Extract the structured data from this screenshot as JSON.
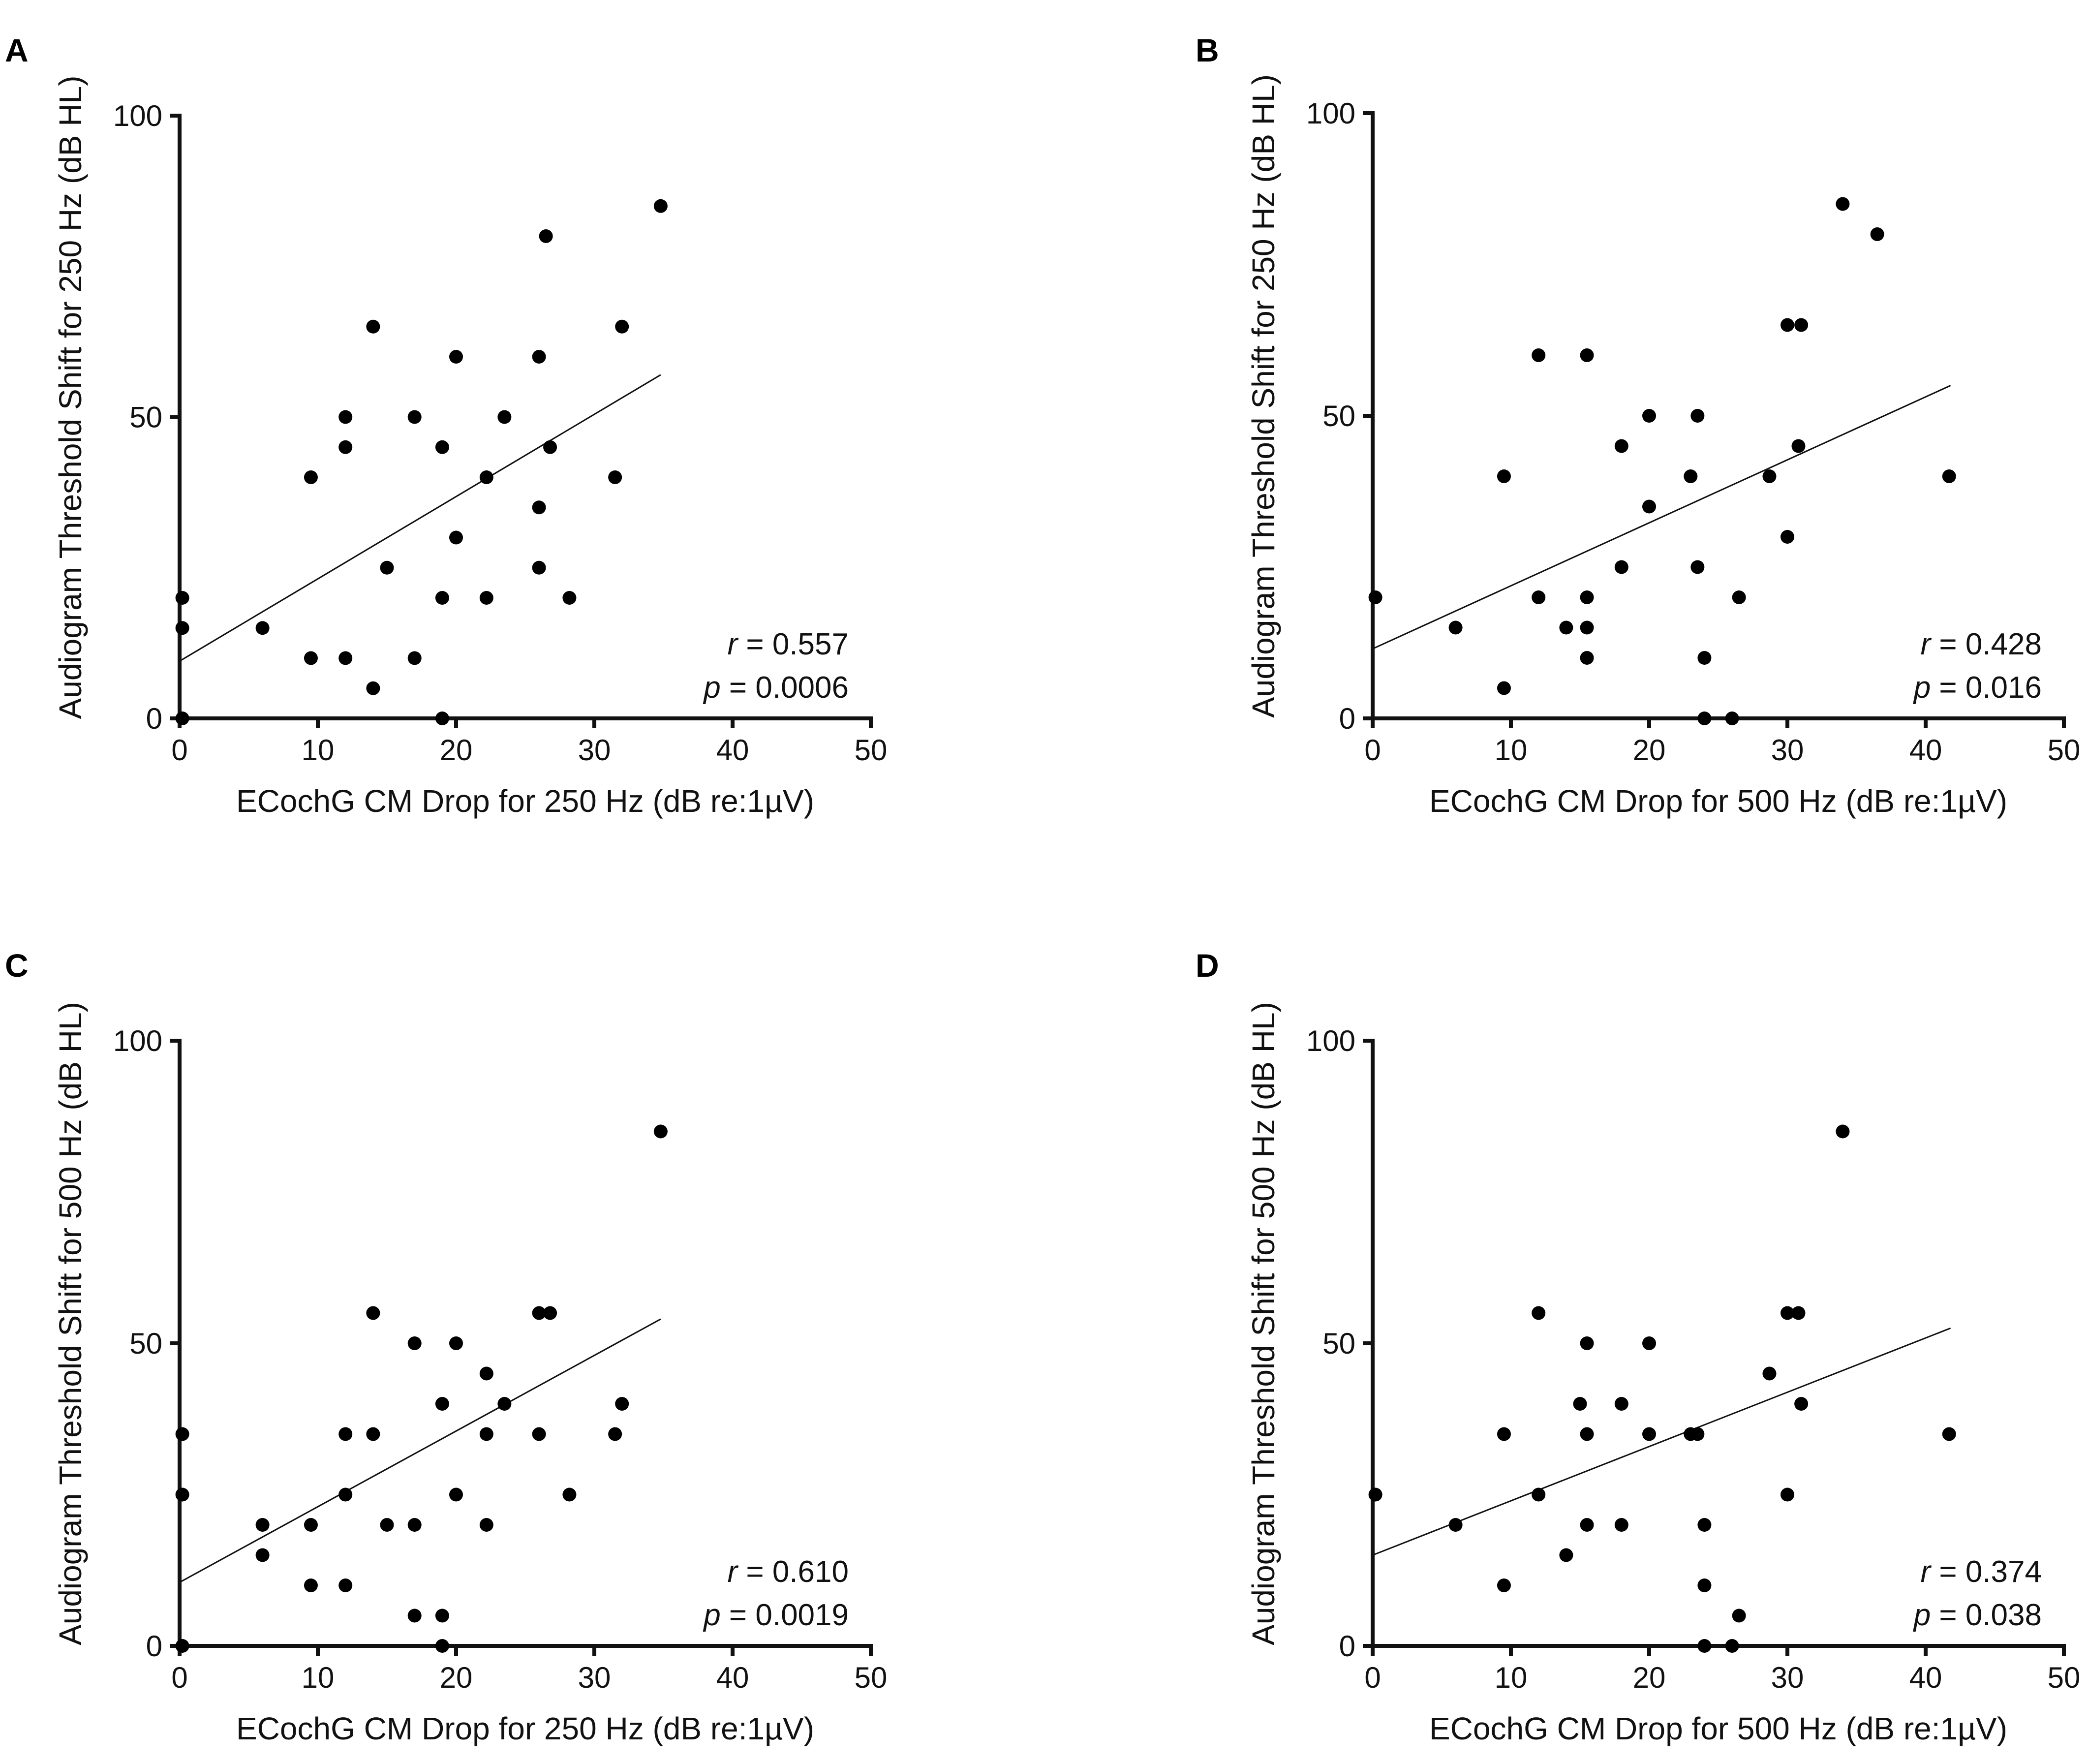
{
  "chart_data": [
    {
      "panel": "A",
      "type": "scatter",
      "xlabel": "ECochG CM Drop for 250 Hz (dB re:1µV)",
      "ylabel": "Audiogram Threshold Shift for 250 Hz (dB HL)",
      "xlim": [
        0,
        50
      ],
      "ylim": [
        0,
        100
      ],
      "xticks": [
        "0",
        "10",
        "20",
        "30",
        "40",
        "50"
      ],
      "yticks": [
        "0",
        "50",
        "100"
      ],
      "stats": {
        "r_symbol": "r",
        "r_value": "= 0.557",
        "p_symbol": "p",
        "p_value": "= 0.0006"
      },
      "fit": {
        "x": [
          0,
          34.8
        ],
        "y": [
          9.5,
          57
        ]
      },
      "points": [
        [
          0.2,
          20
        ],
        [
          0.2,
          15
        ],
        [
          0.2,
          0
        ],
        [
          6,
          15
        ],
        [
          9.5,
          40
        ],
        [
          9.5,
          10
        ],
        [
          12,
          50
        ],
        [
          12,
          45
        ],
        [
          12,
          10
        ],
        [
          14,
          65
        ],
        [
          14,
          5
        ],
        [
          15,
          25
        ],
        [
          17,
          50
        ],
        [
          17,
          10
        ],
        [
          19,
          45
        ],
        [
          19,
          20
        ],
        [
          19,
          0
        ],
        [
          20,
          60
        ],
        [
          20,
          30
        ],
        [
          22.2,
          40
        ],
        [
          22.2,
          20
        ],
        [
          23.5,
          50
        ],
        [
          26,
          60
        ],
        [
          26,
          35
        ],
        [
          26,
          25
        ],
        [
          26.5,
          80
        ],
        [
          26.8,
          45
        ],
        [
          28.2,
          20
        ],
        [
          31.5,
          40
        ],
        [
          32,
          65
        ],
        [
          34.8,
          85
        ]
      ]
    },
    {
      "panel": "B",
      "type": "scatter",
      "xlabel": "ECochG CM Drop for 500 Hz (dB re:1µV)",
      "ylabel": "Audiogram Threshold Shift for 250 Hz (dB HL)",
      "xlim": [
        0,
        50
      ],
      "ylim": [
        0,
        100
      ],
      "xticks": [
        "0",
        "10",
        "20",
        "30",
        "40",
        "50"
      ],
      "yticks": [
        "0",
        "50",
        "100"
      ],
      "stats": {
        "r_symbol": "r",
        "r_value": "= 0.428",
        "p_symbol": "p",
        "p_value": "= 0.016"
      },
      "fit": {
        "x": [
          0,
          41.8
        ],
        "y": [
          11.5,
          55
        ]
      },
      "points": [
        [
          0.2,
          20
        ],
        [
          6,
          15
        ],
        [
          9.5,
          40
        ],
        [
          9.5,
          5
        ],
        [
          12,
          60
        ],
        [
          12,
          20
        ],
        [
          14,
          15
        ],
        [
          15.5,
          60
        ],
        [
          15.5,
          20
        ],
        [
          15.5,
          15
        ],
        [
          15.5,
          10
        ],
        [
          18,
          45
        ],
        [
          18,
          25
        ],
        [
          20,
          50
        ],
        [
          20,
          35
        ],
        [
          23,
          40
        ],
        [
          23.5,
          50
        ],
        [
          23.5,
          25
        ],
        [
          24,
          10
        ],
        [
          24,
          0
        ],
        [
          26,
          0
        ],
        [
          26.5,
          20
        ],
        [
          28.7,
          40
        ],
        [
          30,
          65
        ],
        [
          30,
          30
        ],
        [
          30.8,
          45
        ],
        [
          31,
          65
        ],
        [
          34,
          85
        ],
        [
          36.5,
          80
        ],
        [
          41.7,
          40
        ]
      ]
    },
    {
      "panel": "C",
      "type": "scatter",
      "xlabel": "ECochG CM Drop for 250 Hz (dB re:1µV)",
      "ylabel": "Audiogram Threshold Shift for 500 Hz (dB HL)",
      "xlim": [
        0,
        50
      ],
      "ylim": [
        0,
        100
      ],
      "xticks": [
        "0",
        "10",
        "20",
        "30",
        "40",
        "50"
      ],
      "yticks": [
        "0",
        "50",
        "100"
      ],
      "stats": {
        "r_symbol": "r",
        "r_value": "= 0.610",
        "p_symbol": "p",
        "p_value": "= 0.0019"
      },
      "fit": {
        "x": [
          0,
          34.8
        ],
        "y": [
          10.5,
          54
        ]
      },
      "points": [
        [
          0.2,
          35
        ],
        [
          0.2,
          25
        ],
        [
          0.2,
          0
        ],
        [
          6,
          20
        ],
        [
          6,
          15
        ],
        [
          9.5,
          20
        ],
        [
          9.5,
          10
        ],
        [
          12,
          35
        ],
        [
          12,
          25
        ],
        [
          12,
          10
        ],
        [
          14,
          55
        ],
        [
          14,
          35
        ],
        [
          15,
          20
        ],
        [
          17,
          50
        ],
        [
          17,
          20
        ],
        [
          17,
          5
        ],
        [
          19,
          40
        ],
        [
          19,
          5
        ],
        [
          19,
          0
        ],
        [
          20,
          50
        ],
        [
          20,
          25
        ],
        [
          22.2,
          45
        ],
        [
          22.2,
          35
        ],
        [
          22.2,
          20
        ],
        [
          23.5,
          40
        ],
        [
          26,
          55
        ],
        [
          26,
          35
        ],
        [
          26.8,
          55
        ],
        [
          28.2,
          25
        ],
        [
          31.5,
          35
        ],
        [
          32,
          40
        ],
        [
          34.8,
          85
        ]
      ]
    },
    {
      "panel": "D",
      "type": "scatter",
      "xlabel": "ECochG CM Drop for 500 Hz (dB re:1µV)",
      "ylabel": "Audiogram Threshold Shift for 500 Hz (dB HL)",
      "xlim": [
        0,
        50
      ],
      "ylim": [
        0,
        100
      ],
      "xticks": [
        "0",
        "10",
        "20",
        "30",
        "40",
        "50"
      ],
      "yticks": [
        "0",
        "50",
        "100"
      ],
      "stats": {
        "r_symbol": "r",
        "r_value": "= 0.374",
        "p_symbol": "p",
        "p_value": "= 0.038"
      },
      "fit": {
        "x": [
          0,
          41.8
        ],
        "y": [
          15,
          52.5
        ]
      },
      "points": [
        [
          0.2,
          25
        ],
        [
          6,
          20
        ],
        [
          9.5,
          35
        ],
        [
          9.5,
          10
        ],
        [
          12,
          55
        ],
        [
          12,
          25
        ],
        [
          14,
          15
        ],
        [
          15,
          40
        ],
        [
          15.5,
          50
        ],
        [
          15.5,
          35
        ],
        [
          15.5,
          20
        ],
        [
          18,
          40
        ],
        [
          18,
          20
        ],
        [
          20,
          50
        ],
        [
          20,
          35
        ],
        [
          23,
          35
        ],
        [
          23.5,
          35
        ],
        [
          24,
          20
        ],
        [
          24,
          10
        ],
        [
          24,
          0
        ],
        [
          26,
          0
        ],
        [
          26.5,
          5
        ],
        [
          28.7,
          45
        ],
        [
          30,
          55
        ],
        [
          30,
          25
        ],
        [
          30.8,
          55
        ],
        [
          31,
          40
        ],
        [
          34,
          85
        ],
        [
          41.7,
          35
        ]
      ]
    }
  ]
}
